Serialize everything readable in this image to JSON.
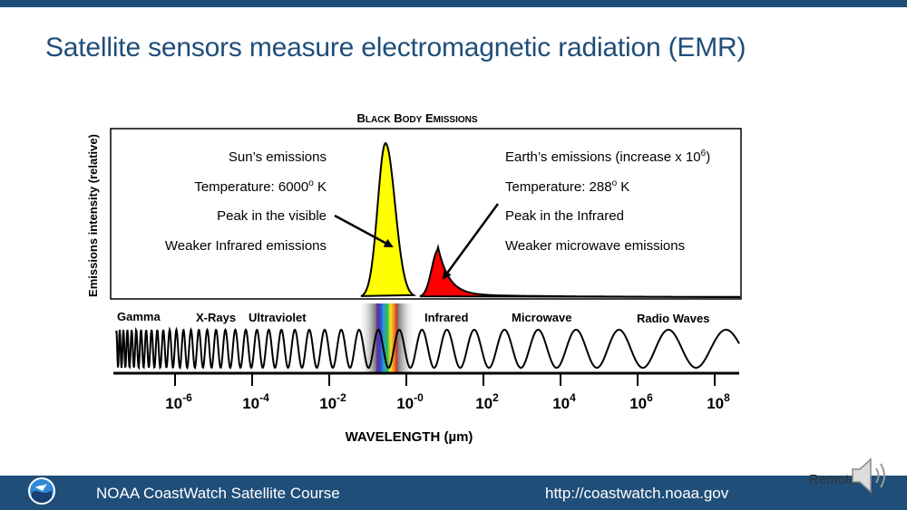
{
  "slide": {
    "title": "Satellite sensors measure electromagnetic radiation (EMR)"
  },
  "diagram": {
    "chart_title": "Black Body Emissions",
    "ylabel": "Emissions intensity (relative)",
    "xlabel": "WAVELENGTH (µm)",
    "sun": {
      "lines": [
        "Sun’s emissions",
        "Temperature: 6000",
        "Peak in the visible",
        "Weaker Infrared emissions"
      ],
      "temp_unit": " K",
      "temp_sup": "o",
      "color": "#ffff00"
    },
    "earth": {
      "lines": [
        "Earth’s emissions (increase x 10",
        "Temperature: 288",
        "Peak in the Infrared",
        "Weaker microwave emissions"
      ],
      "line1_sup": "6",
      "line1_end": ")",
      "temp_unit": " K",
      "temp_sup": "o",
      "color": "#ff0000"
    },
    "bands": [
      "Gamma",
      "X-Rays",
      "Ultraviolet",
      "Infrared",
      "Microwave",
      "Radio Waves"
    ],
    "tick_base": "10",
    "tick_exponents": [
      "-6",
      "-4",
      "-2",
      "-0",
      "2",
      "4",
      "6",
      "8"
    ]
  },
  "footer": {
    "left": "NOAA CoastWatch Satellite Course",
    "right": "http://coastwatch.noaa.gov",
    "remote_label": "Remote"
  },
  "icons": {
    "logo": "noaa-logo-icon",
    "speaker": "speaker-icon"
  }
}
